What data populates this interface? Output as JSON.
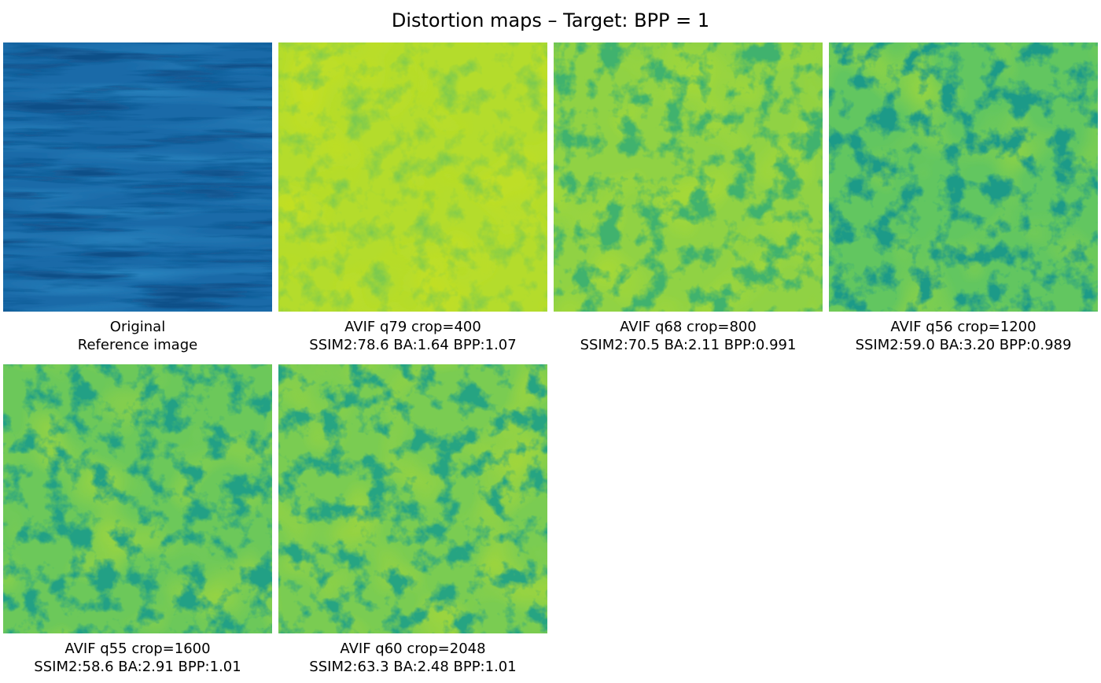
{
  "figure": {
    "title": "Distortion maps – Target: BPP = 1",
    "panels": [
      {
        "line1": "Original",
        "line2": "Reference image",
        "base_color": "#1a6aa8",
        "dark_color": "#0d4f88",
        "light_color": "#2a86c0"
      },
      {
        "line1": "AVIF q79 crop=400",
        "line2": "SSIM2:78.6 BA:1.64 BPP:1.07",
        "base_color": "#b4dc2c",
        "dark_color": "#7cca4e",
        "light_color": "#c8e020"
      },
      {
        "line1": "AVIF q68 crop=800",
        "line2": "SSIM2:70.5 BA:2.11 BPP:0.991",
        "base_color": "#90d244",
        "dark_color": "#3fb26e",
        "light_color": "#b0dc30"
      },
      {
        "line1": "AVIF q56 crop=1200",
        "line2": "SSIM2:59.0 BA:3.20 BPP:0.989",
        "base_color": "#62c660",
        "dark_color": "#1f9a88",
        "light_color": "#9ad63e"
      },
      {
        "line1": "AVIF q55 crop=1600",
        "line2": "SSIM2:58.6 BA:2.91 BPP:1.01",
        "base_color": "#6cc85a",
        "dark_color": "#22a085",
        "light_color": "#a6d83a"
      },
      {
        "line1": "AVIF q60 crop=2048",
        "line2": "SSIM2:63.3 BA:2.48 BPP:1.01",
        "base_color": "#7acc52",
        "dark_color": "#28a482",
        "light_color": "#aed934"
      }
    ]
  }
}
